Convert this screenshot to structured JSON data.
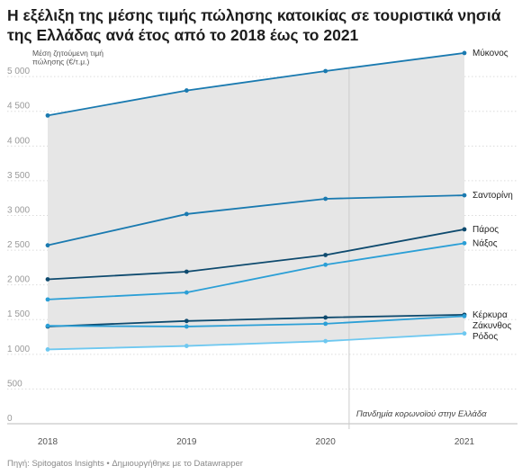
{
  "title": "Η εξέλιξη της μέσης τιμής πώλησης κατοικίας σε τουριστικά νησιά της Ελλάδας ανά έτος από το 2018 έως το 2021",
  "source": "Πηγή: Spitogatos Insights • Δημιουργήθηκε με το Datawrapper",
  "colors": {
    "band": "#e6e6e6",
    "grid": "#dcdcdc",
    "marker": "#cccccc",
    "tick_text": "#999999",
    "label_text": "#222222"
  },
  "chart_data": {
    "type": "line",
    "title": "Η εξέλιξη της μέσης τιμής πώλησης κατοικίας σε τουριστικά νησιά της Ελλάδας ανά έτος από το 2018 έως το 2021",
    "ylabel": "Μέση ζητούμενη τιμή πώλησης (€/τ.μ.)",
    "xlabel": "",
    "x": [
      "2018",
      "2019",
      "2020",
      "2021"
    ],
    "x_positions": [
      2018,
      2019,
      2020,
      2021
    ],
    "ylim": [
      0,
      5300
    ],
    "yticks": [
      0,
      500,
      1000,
      1500,
      2000,
      2500,
      3000,
      3500,
      4000,
      4500,
      5000
    ],
    "ytick_labels": [
      "0",
      "500",
      "1 000",
      "1 500",
      "2 000",
      "2 500",
      "3 000",
      "3 500",
      "4 000",
      "4 500",
      "5 000"
    ],
    "grid": true,
    "shaded_range": "between lowest and highest series",
    "annotation": {
      "x": 2020.17,
      "text": "Πανδημία κορωνοϊού στην Ελλάδα"
    },
    "series": [
      {
        "name": "Μύκονος",
        "values": [
          4440,
          4800,
          5080,
          5340
        ],
        "color": "#1a7ab0"
      },
      {
        "name": "Σαντορίνη",
        "values": [
          2570,
          3020,
          3240,
          3290
        ],
        "color": "#1a7ab0"
      },
      {
        "name": "Πάρος",
        "values": [
          2080,
          2190,
          2430,
          2800
        ],
        "color": "#0e4a6e"
      },
      {
        "name": "Νάξος",
        "values": [
          1790,
          1890,
          2290,
          2600
        ],
        "color": "#2b9fd6"
      },
      {
        "name": "Κέρκυρα",
        "values": [
          1400,
          1480,
          1530,
          1570
        ],
        "color": "#0e4a6e"
      },
      {
        "name": "Ζάκυνθος",
        "values": [
          1410,
          1400,
          1440,
          1550
        ],
        "color": "#2b9fd6"
      },
      {
        "name": "Ρόδος",
        "values": [
          1070,
          1120,
          1190,
          1300
        ],
        "color": "#6ec8f0"
      }
    ]
  }
}
